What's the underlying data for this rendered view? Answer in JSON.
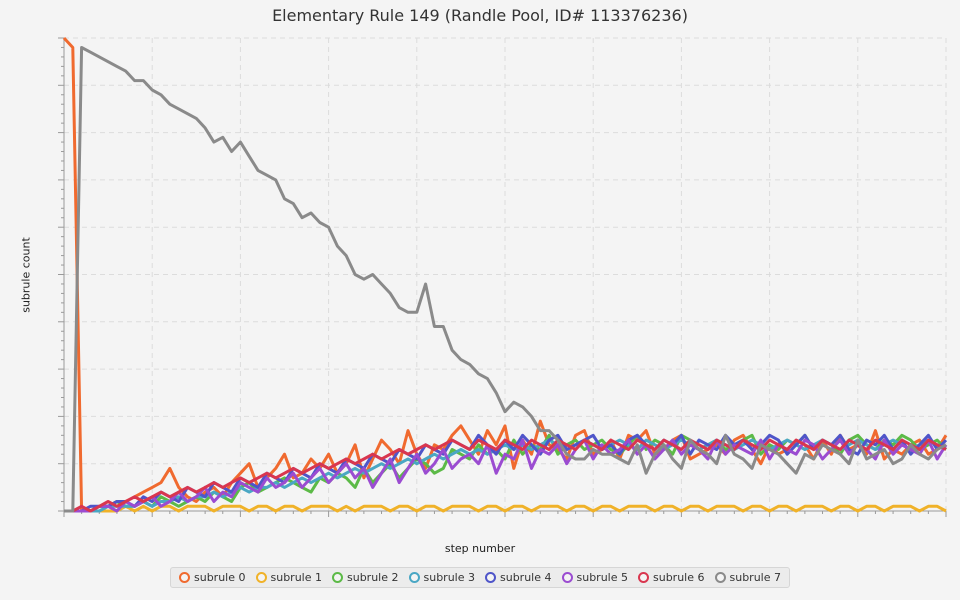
{
  "chart_data": {
    "type": "line",
    "title": "Elementary Rule 149 (Randle Pool, ID# 113376236)",
    "xlabel": "step number",
    "ylabel": "subrule count",
    "xlim": [
      0,
      100
    ],
    "ylim": [
      0,
      100
    ],
    "grid": true,
    "legend": "bottom",
    "x_step": 1,
    "series": [
      {
        "name": "subrule 0",
        "color": "#f06a2f",
        "values": [
          100,
          98,
          0,
          0,
          1,
          1,
          2,
          2,
          3,
          4,
          5,
          6,
          9,
          5,
          3,
          2,
          4,
          5,
          3,
          6,
          8,
          10,
          5,
          7,
          9,
          12,
          7,
          8,
          11,
          9,
          12,
          8,
          10,
          14,
          7,
          11,
          15,
          13,
          10,
          17,
          12,
          9,
          14,
          13,
          16,
          18,
          15,
          12,
          17,
          14,
          18,
          9,
          15,
          12,
          19,
          14,
          13,
          11,
          16,
          17,
          12,
          13,
          15,
          11,
          16,
          15,
          17,
          12,
          13,
          15,
          16,
          11,
          12,
          13,
          14,
          12,
          15,
          16,
          13,
          10,
          14,
          12,
          13,
          15,
          14,
          11,
          15,
          12,
          16,
          13,
          14,
          12,
          17,
          11,
          13,
          12,
          14,
          15,
          12,
          13,
          16
        ]
      },
      {
        "name": "subrule 1",
        "color": "#f0b229",
        "values": [
          0,
          0,
          0,
          0,
          0,
          0,
          0,
          1,
          0,
          1,
          0,
          1,
          1,
          0,
          1,
          1,
          1,
          0,
          1,
          1,
          1,
          0,
          1,
          1,
          0,
          1,
          1,
          0,
          1,
          1,
          1,
          0,
          1,
          0,
          1,
          1,
          1,
          0,
          1,
          1,
          0,
          1,
          1,
          0,
          1,
          1,
          1,
          0,
          1,
          1,
          0,
          1,
          1,
          0,
          1,
          1,
          1,
          0,
          1,
          1,
          0,
          1,
          1,
          0,
          1,
          1,
          1,
          0,
          1,
          1,
          0,
          1,
          1,
          0,
          1,
          1,
          1,
          0,
          1,
          1,
          0,
          1,
          1,
          0,
          1,
          1,
          1,
          0,
          1,
          1,
          0,
          1,
          1,
          0,
          1,
          1,
          1,
          0,
          1,
          1,
          0
        ]
      },
      {
        "name": "subrule 2",
        "color": "#5cba47",
        "values": [
          0,
          0,
          0,
          0,
          1,
          1,
          2,
          1,
          1,
          2,
          1,
          3,
          2,
          1,
          2,
          3,
          2,
          4,
          3,
          2,
          5,
          6,
          4,
          5,
          6,
          7,
          6,
          5,
          4,
          7,
          6,
          8,
          7,
          5,
          9,
          6,
          8,
          10,
          7,
          9,
          11,
          10,
          8,
          9,
          13,
          12,
          11,
          14,
          12,
          13,
          11,
          15,
          12,
          14,
          13,
          16,
          12,
          14,
          15,
          13,
          14,
          15,
          13,
          12,
          14,
          16,
          13,
          15,
          14,
          12,
          16,
          15,
          13,
          14,
          15,
          13,
          14,
          15,
          16,
          12,
          14,
          13,
          15,
          14,
          16,
          13,
          15,
          14,
          12,
          15,
          16,
          14,
          13,
          15,
          14,
          16,
          15,
          13,
          14,
          15,
          13
        ]
      },
      {
        "name": "subrule 3",
        "color": "#4aa7c4",
        "values": [
          0,
          0,
          0,
          0,
          0,
          1,
          1,
          1,
          1,
          2,
          1,
          2,
          2,
          3,
          2,
          3,
          3,
          4,
          3,
          4,
          5,
          4,
          5,
          5,
          6,
          5,
          6,
          7,
          6,
          7,
          8,
          7,
          8,
          9,
          8,
          9,
          10,
          9,
          10,
          11,
          10,
          11,
          12,
          11,
          12,
          13,
          12,
          13,
          12,
          13,
          14,
          13,
          14,
          13,
          14,
          15,
          14,
          13,
          14,
          15,
          14,
          13,
          14,
          15,
          14,
          13,
          15,
          14,
          13,
          14,
          15,
          14,
          13,
          14,
          15,
          14,
          13,
          14,
          15,
          14,
          13,
          14,
          15,
          14,
          13,
          14,
          15,
          14,
          13,
          14,
          15,
          14,
          13,
          14,
          15,
          14,
          13,
          14,
          15,
          14,
          13
        ]
      },
      {
        "name": "subrule 4",
        "color": "#4f55c9",
        "values": [
          0,
          0,
          0,
          1,
          1,
          1,
          2,
          2,
          1,
          3,
          2,
          4,
          3,
          2,
          5,
          4,
          3,
          6,
          5,
          4,
          7,
          6,
          5,
          8,
          7,
          6,
          9,
          8,
          7,
          10,
          9,
          8,
          11,
          10,
          9,
          12,
          11,
          10,
          13,
          12,
          11,
          14,
          13,
          12,
          15,
          14,
          13,
          16,
          14,
          12,
          15,
          13,
          16,
          14,
          12,
          15,
          16,
          13,
          14,
          15,
          16,
          13,
          14,
          12,
          15,
          16,
          14,
          13,
          15,
          14,
          16,
          12,
          15,
          14,
          13,
          16,
          14,
          15,
          13,
          14,
          16,
          15,
          12,
          14,
          16,
          13,
          15,
          14,
          16,
          13,
          12,
          15,
          14,
          16,
          13,
          15,
          12,
          14,
          16,
          13,
          15
        ]
      },
      {
        "name": "subrule 5",
        "color": "#9b4cd1",
        "values": [
          0,
          0,
          0,
          0,
          1,
          1,
          0,
          2,
          1,
          2,
          3,
          1,
          2,
          4,
          2,
          3,
          5,
          2,
          4,
          3,
          6,
          5,
          4,
          7,
          5,
          6,
          8,
          5,
          7,
          9,
          6,
          8,
          10,
          7,
          9,
          5,
          8,
          11,
          6,
          9,
          12,
          8,
          10,
          13,
          9,
          11,
          12,
          10,
          14,
          8,
          12,
          11,
          15,
          9,
          13,
          12,
          14,
          10,
          13,
          15,
          11,
          14,
          12,
          13,
          15,
          12,
          14,
          11,
          13,
          15,
          12,
          14,
          13,
          11,
          15,
          12,
          14,
          13,
          12,
          15,
          11,
          14,
          13,
          12,
          15,
          14,
          11,
          13,
          15,
          12,
          14,
          13,
          11,
          15,
          12,
          14,
          13,
          12,
          15,
          11,
          14
        ]
      },
      {
        "name": "subrule 6",
        "color": "#d9364f",
        "values": [
          0,
          0,
          1,
          0,
          1,
          2,
          1,
          2,
          3,
          2,
          3,
          4,
          3,
          4,
          5,
          4,
          5,
          6,
          5,
          6,
          7,
          6,
          7,
          8,
          7,
          8,
          9,
          8,
          9,
          10,
          9,
          10,
          11,
          10,
          11,
          12,
          11,
          12,
          13,
          12,
          13,
          14,
          13,
          14,
          15,
          14,
          13,
          15,
          14,
          13,
          15,
          14,
          13,
          15,
          14,
          13,
          15,
          14,
          13,
          15,
          14,
          13,
          15,
          14,
          13,
          15,
          14,
          13,
          15,
          14,
          13,
          15,
          14,
          13,
          15,
          14,
          13,
          15,
          14,
          13,
          15,
          14,
          13,
          15,
          14,
          13,
          15,
          14,
          13,
          15,
          14,
          13,
          15,
          14,
          13,
          15,
          14,
          13,
          15,
          14,
          13
        ]
      },
      {
        "name": "subrule 7",
        "color": "#8a8a8a",
        "values": [
          0,
          0,
          98,
          97,
          96,
          95,
          94,
          93,
          91,
          91,
          89,
          88,
          86,
          85,
          84,
          83,
          81,
          78,
          79,
          76,
          78,
          75,
          72,
          71,
          70,
          66,
          65,
          62,
          63,
          61,
          60,
          56,
          54,
          50,
          49,
          50,
          48,
          46,
          43,
          42,
          42,
          48,
          39,
          39,
          34,
          32,
          31,
          29,
          28,
          25,
          21,
          23,
          22,
          20,
          17,
          17,
          15,
          12,
          11,
          11,
          13,
          12,
          12,
          11,
          10,
          14,
          8,
          12,
          14,
          11,
          9,
          15,
          13,
          12,
          10,
          16,
          12,
          11,
          9,
          14,
          13,
          12,
          10,
          8,
          12,
          11,
          14,
          13,
          12,
          10,
          15,
          11,
          12,
          13,
          10,
          11,
          14,
          12,
          11,
          13,
          14
        ]
      }
    ]
  }
}
